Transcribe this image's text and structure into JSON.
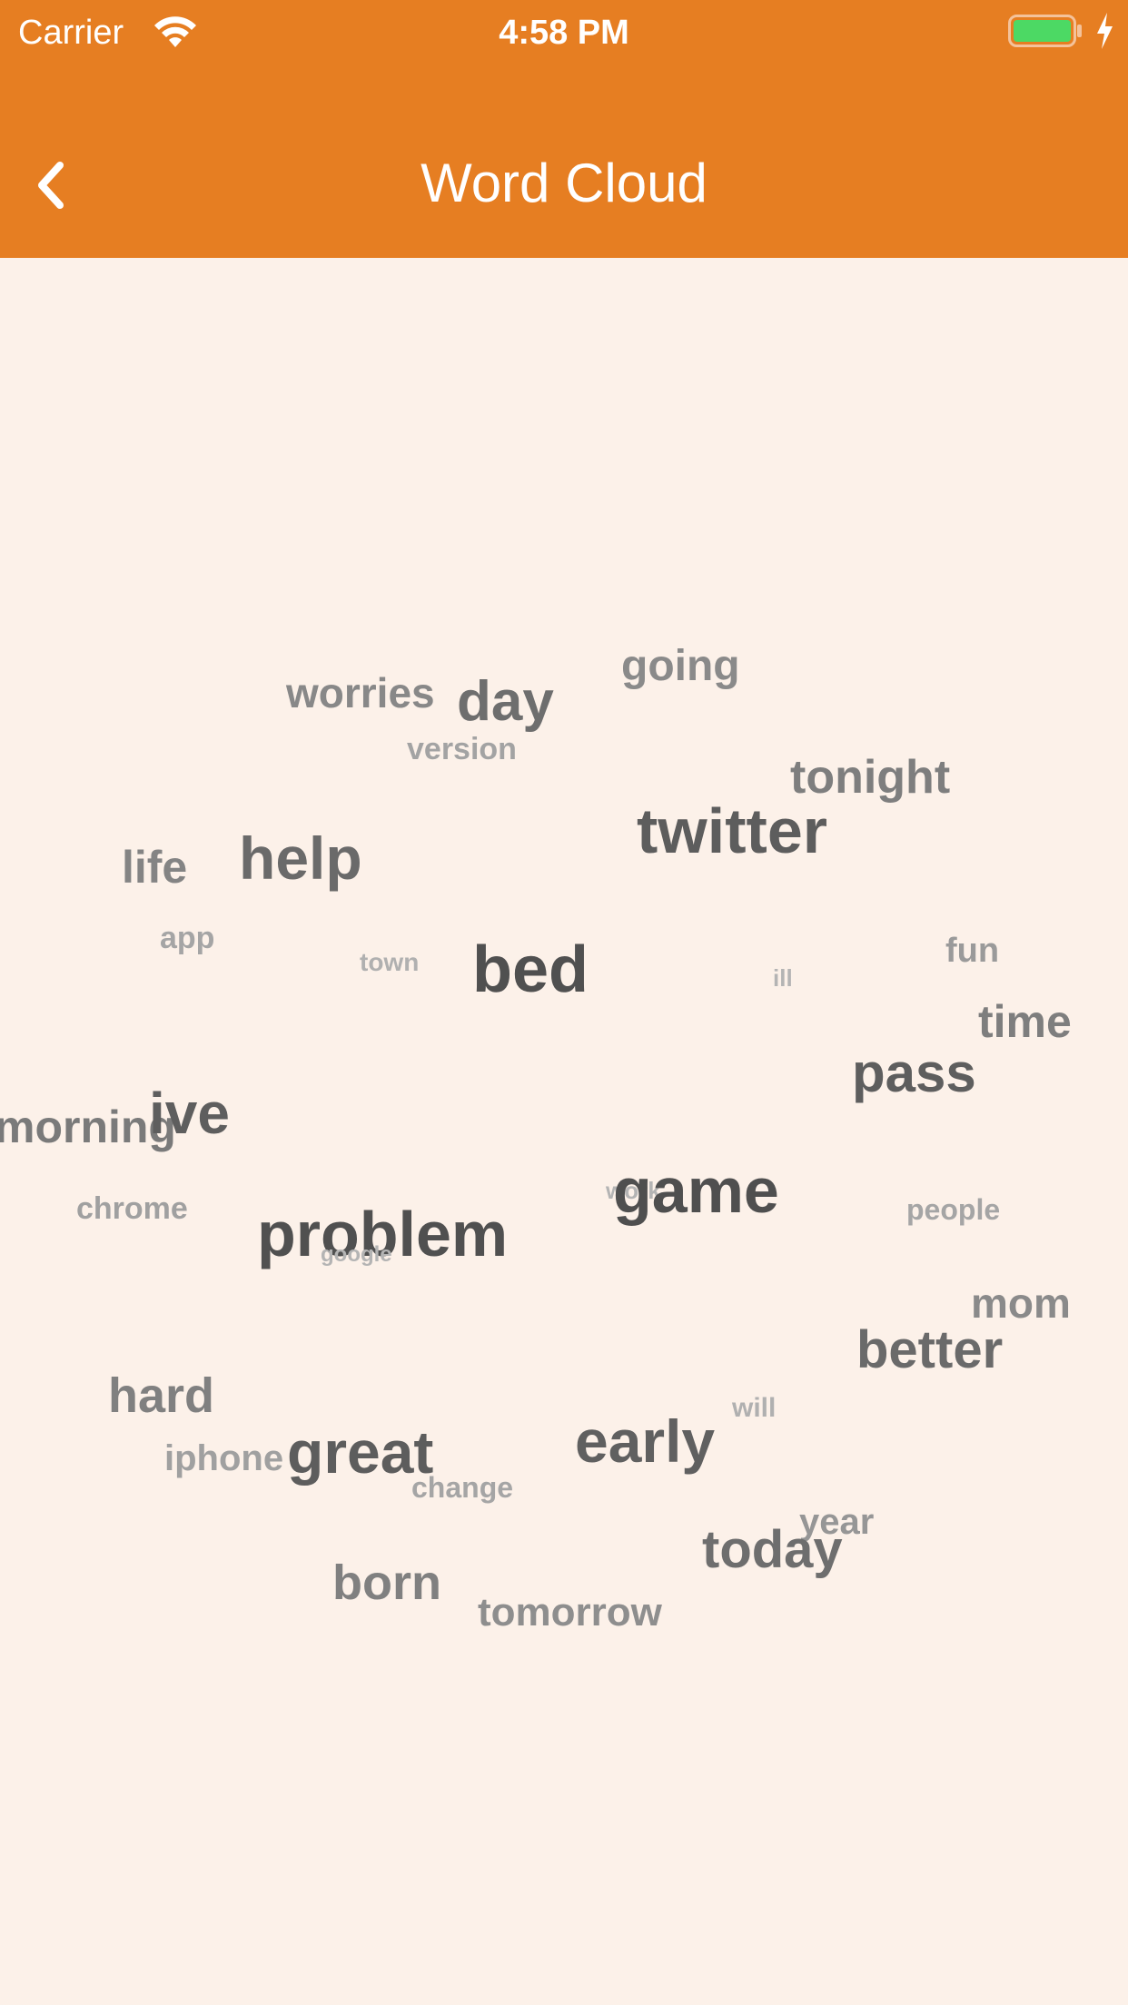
{
  "status_bar": {
    "carrier": "Carrier",
    "time": "4:58 PM",
    "icons": [
      "wifi-icon",
      "battery-icon",
      "charging-bolt-icon"
    ],
    "battery_color": "#4cd964"
  },
  "nav_bar": {
    "title": "Word Cloud",
    "back_icon": "chevron-left-icon",
    "background_color": "#e67e22"
  },
  "word_cloud": {
    "background_color": "#fcf1e9",
    "words": [
      {
        "text": "going",
        "color": "#8a8a8a"
      },
      {
        "text": "worries",
        "color": "#888888"
      },
      {
        "text": "day",
        "color": "#6e6e6e"
      },
      {
        "text": "version",
        "color": "#a3a3a3"
      },
      {
        "text": "tonight",
        "color": "#7e7e7e"
      },
      {
        "text": "twitter",
        "color": "#5d5d5d"
      },
      {
        "text": "help",
        "color": "#6a6a6a"
      },
      {
        "text": "life",
        "color": "#848484"
      },
      {
        "text": "app",
        "color": "#a5a5a5"
      },
      {
        "text": "town",
        "color": "#b0b0b0"
      },
      {
        "text": "bed",
        "color": "#505050"
      },
      {
        "text": "ill",
        "color": "#b4b4b4"
      },
      {
        "text": "fun",
        "color": "#9a9a9a"
      },
      {
        "text": "time",
        "color": "#7e7e7e"
      },
      {
        "text": "pass",
        "color": "#5e5e5e"
      },
      {
        "text": "morning",
        "color": "#7a7a7a"
      },
      {
        "text": "ive",
        "color": "#5e5e5e"
      },
      {
        "text": "chrome",
        "color": "#a0a0a0"
      },
      {
        "text": "work",
        "color": "#b4b4b4"
      },
      {
        "text": "game",
        "color": "#4f4f4f"
      },
      {
        "text": "people",
        "color": "#a5a5a5"
      },
      {
        "text": "problem",
        "color": "#505050"
      },
      {
        "text": "google",
        "color": "#b4b4b4"
      },
      {
        "text": "mom",
        "color": "#8a8a8a"
      },
      {
        "text": "better",
        "color": "#6a6a6a"
      },
      {
        "text": "hard",
        "color": "#808080"
      },
      {
        "text": "will",
        "color": "#b0b0b0"
      },
      {
        "text": "early",
        "color": "#606060"
      },
      {
        "text": "iphone",
        "color": "#a0a0a0"
      },
      {
        "text": "great",
        "color": "#5d5d5d"
      },
      {
        "text": "change",
        "color": "#a5a5a5"
      },
      {
        "text": "year",
        "color": "#969696"
      },
      {
        "text": "today",
        "color": "#6e6e6e"
      },
      {
        "text": "born",
        "color": "#808080"
      },
      {
        "text": "tomorrow",
        "color": "#8e8e8e"
      }
    ]
  }
}
